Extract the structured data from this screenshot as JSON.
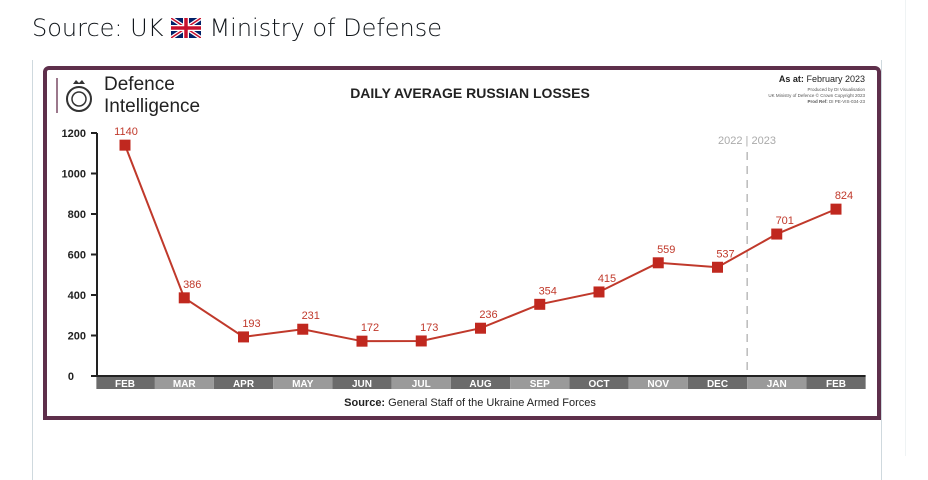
{
  "caption": {
    "text_before": "Source: UK",
    "text_after": "Ministry of Defense",
    "flag_icon": "uk-flag-icon"
  },
  "header": {
    "logo_line1": "Defence",
    "logo_line2": "Intelligence",
    "as_at_label": "As at:",
    "as_at_value": "February 2023",
    "produced_by": "Produced by DI Visualisation",
    "copyright": "UK Ministry of Defence © Crown Copyright 2023",
    "prod_ref_label": "Prod Ref:",
    "prod_ref_value": "DI PE-VIS-034-23"
  },
  "chart_data": {
    "type": "line",
    "title": "DAILY AVERAGE RUSSIAN LOSSES",
    "categories": [
      "FEB",
      "MAR",
      "APR",
      "MAY",
      "JUN",
      "JUL",
      "AUG",
      "SEP",
      "OCT",
      "NOV",
      "DEC",
      "JAN",
      "FEB"
    ],
    "values": [
      1140,
      386,
      193,
      231,
      172,
      173,
      236,
      354,
      415,
      559,
      537,
      701,
      824
    ],
    "yticks": [
      0,
      200,
      400,
      600,
      800,
      1000,
      1200
    ],
    "ylim": [
      0,
      1200
    ],
    "year_divider": "2022 | 2023",
    "source_label": "Source:",
    "source_text": "General Staff of the Ukraine Armed Forces",
    "colors": {
      "line": "#c0392b",
      "marker": "#c0281f",
      "label": "#c0392b",
      "band_dark": "#6b6b6b",
      "band_light": "#9a9a9a",
      "border": "#5e2f4b"
    }
  }
}
